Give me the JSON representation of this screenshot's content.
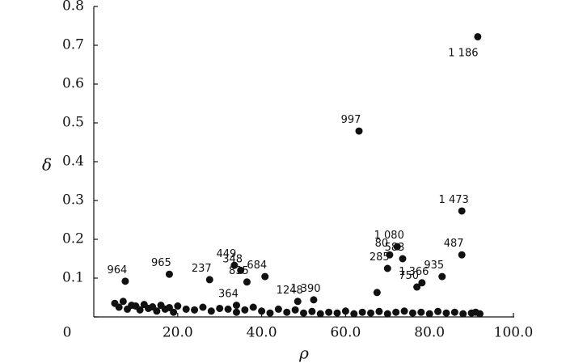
{
  "chart_data": {
    "type": "scatter",
    "x_label": "ρ",
    "y_label": "δ",
    "xlim": [
      0,
      100
    ],
    "ylim": [
      0,
      0.8
    ],
    "xticks": [
      {
        "value": 20,
        "label": "20.0"
      },
      {
        "value": 40,
        "label": "40.0"
      },
      {
        "value": 60,
        "label": "60.0"
      },
      {
        "value": 80,
        "label": "80.0"
      },
      {
        "value": 100,
        "label": "100.0"
      }
    ],
    "yticks": [
      0,
      0.1,
      0.2,
      0.3,
      0.4,
      0.5,
      0.6,
      0.7,
      0.8
    ],
    "color": "#111111",
    "x": [
      91.5,
      63.2,
      87.7,
      72.3,
      73.6,
      70.0,
      87.7,
      83.0,
      78.2,
      77.0,
      67.5,
      40.8,
      33.5,
      27.6,
      52.4,
      48.6,
      7.5,
      35.0,
      18.0,
      36.5,
      70.5,
      34.0,
      5,
      6,
      7,
      8,
      9,
      10,
      11,
      12,
      13,
      14,
      15,
      16,
      17,
      18,
      19,
      20,
      22,
      24,
      26,
      28,
      30,
      32,
      34,
      36,
      38,
      40,
      42,
      44,
      46,
      48,
      50,
      52,
      54,
      56,
      58,
      60,
      62,
      64,
      66,
      68,
      70,
      72,
      74,
      76,
      78,
      80,
      82,
      84,
      86,
      88,
      90,
      91,
      92
    ],
    "values": [
      0.722,
      0.479,
      0.273,
      0.181,
      0.15,
      0.125,
      0.16,
      0.104,
      0.088,
      0.077,
      0.063,
      0.104,
      0.133,
      0.096,
      0.044,
      0.04,
      0.092,
      0.12,
      0.11,
      0.09,
      0.16,
      0.03,
      0.035,
      0.025,
      0.04,
      0.02,
      0.03,
      0.028,
      0.018,
      0.032,
      0.022,
      0.026,
      0.015,
      0.03,
      0.02,
      0.024,
      0.012,
      0.028,
      0.02,
      0.018,
      0.025,
      0.015,
      0.022,
      0.02,
      0.012,
      0.018,
      0.025,
      0.015,
      0.01,
      0.02,
      0.012,
      0.018,
      0.01,
      0.014,
      0.008,
      0.012,
      0.01,
      0.015,
      0.008,
      0.012,
      0.01,
      0.014,
      0.008,
      0.012,
      0.015,
      0.01,
      0.012,
      0.008,
      0.014,
      0.01,
      0.012,
      0.008,
      0.01,
      0.012,
      0.008
    ],
    "labels": [
      "1 186",
      "997",
      "1 473",
      "1 080",
      "583",
      "285",
      "487",
      "935",
      "1 366",
      "750",
      null,
      "684",
      "449",
      "237",
      "1 390",
      "1248",
      "964",
      "348",
      "965",
      "835",
      "80",
      "364",
      null,
      null,
      null,
      null,
      null,
      null,
      null,
      null,
      null,
      null,
      null,
      null,
      null,
      null,
      null,
      null,
      null,
      null,
      null,
      null,
      null,
      null,
      null,
      null,
      null,
      null,
      null,
      null,
      null,
      null,
      null,
      null,
      null,
      null,
      null,
      null,
      null,
      null,
      null,
      null,
      null,
      null,
      null,
      null,
      null,
      null,
      null,
      null,
      null
    ]
  }
}
